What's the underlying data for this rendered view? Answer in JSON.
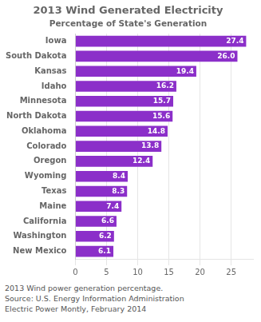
{
  "chart_data": {
    "type": "bar",
    "orientation": "horizontal",
    "title": "2013 Wind Generated Electricity",
    "subtitle": "Percentage of State's Generation",
    "categories": [
      "Iowa",
      "South Dakota",
      "Kansas",
      "Idaho",
      "Minnesota",
      "North Dakota",
      "Oklahoma",
      "Colorado",
      "Oregon",
      "Wyoming",
      "Texas",
      "Maine",
      "California",
      "Washington",
      "New Mexico"
    ],
    "values": [
      27.4,
      26.0,
      19.4,
      16.2,
      15.7,
      15.6,
      14.8,
      13.8,
      12.4,
      8.4,
      8.3,
      7.4,
      6.6,
      6.2,
      6.1
    ],
    "value_labels": [
      "27.4",
      "26.0",
      "19.4",
      "16.2",
      "15.7",
      "15.6",
      "14.8",
      "13.8",
      "12.4",
      "8.4",
      "8.3",
      "7.4",
      "6.6",
      "6.2",
      "6.1"
    ],
    "data_labels": true,
    "color": "#8B2FC9",
    "xlim": [
      0,
      28.5
    ],
    "xticks": [
      0,
      5,
      10,
      15,
      20,
      25
    ],
    "grid": true,
    "annotations": [
      "2013 Wind power generation percentage.",
      "Source: U.S. Energy Information Administration",
      "Electric Power Montly, February 2014"
    ]
  }
}
